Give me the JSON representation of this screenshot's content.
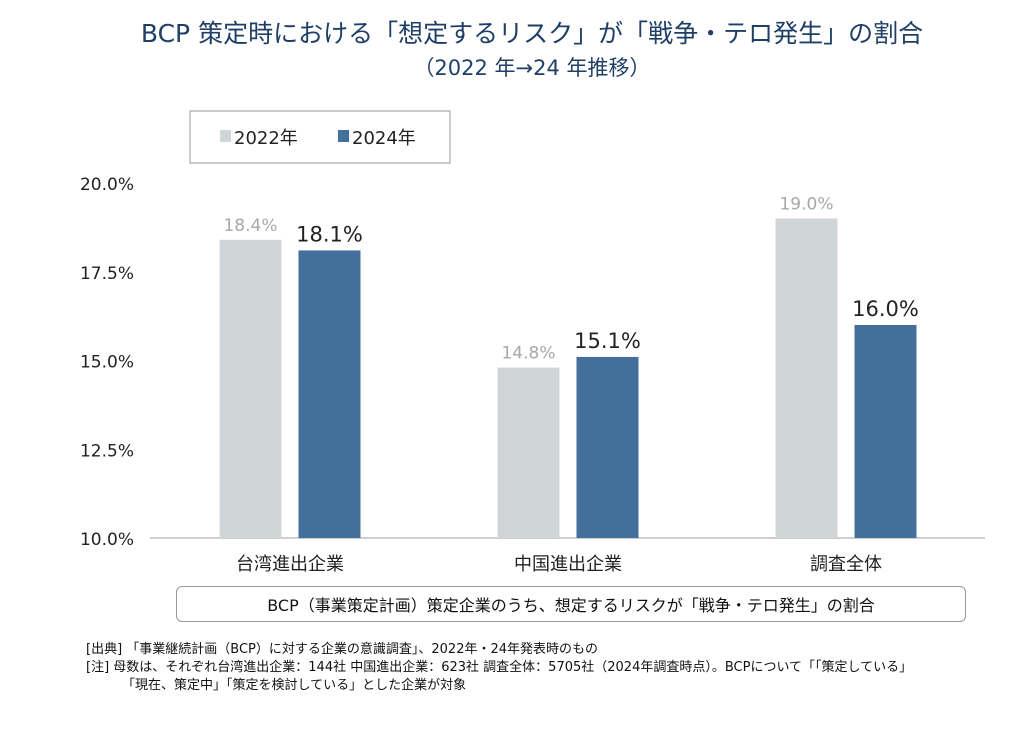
{
  "title": "BCP 策定時における「想定するリスク」が「戦争・テロ発生」の割合",
  "subtitle": "（2022 年→24 年推移）",
  "chart_data": {
    "type": "bar",
    "categories": [
      "台湾進出企業",
      "中国進出企業",
      "調査全体"
    ],
    "series": [
      {
        "name": "2022年",
        "values": [
          18.4,
          14.8,
          19.0
        ],
        "labels": [
          "18.4%",
          "14.8%",
          "19.0%"
        ],
        "color": "#d0d5d8",
        "label_color": "#a8a8a8"
      },
      {
        "name": "2024年",
        "values": [
          18.1,
          15.1,
          16.0
        ],
        "labels": [
          "18.1%",
          "15.1%",
          "16.0%"
        ],
        "color": "#426f9c",
        "label_color": "#222222"
      }
    ],
    "ylim": [
      10,
      20
    ],
    "yticks": [
      10,
      12.5,
      15,
      17.5,
      20
    ],
    "ytick_labels": [
      "10.0%",
      "12.5%",
      "15.0%",
      "17.5%",
      "20.0%"
    ],
    "legend_position": "top-left",
    "grid": false
  },
  "caption": "BCP（事業策定計画）策定企業のうち、想定するリスクが「戦争・テロ発生」の割合",
  "notes": {
    "source": "[出典] 「事業継続計画（BCP）に対する企業の意識調査」、2022年・24年発表時のもの",
    "note_line1": "[注]  母数は、それぞれ台湾進出企業：144社  中国進出企業：623社  調査全体：5705社（2024年調査時点）。BCPについて「「策定している」",
    "note_line2": "「現在、策定中」「策定を検討している」とした企業が対象"
  }
}
